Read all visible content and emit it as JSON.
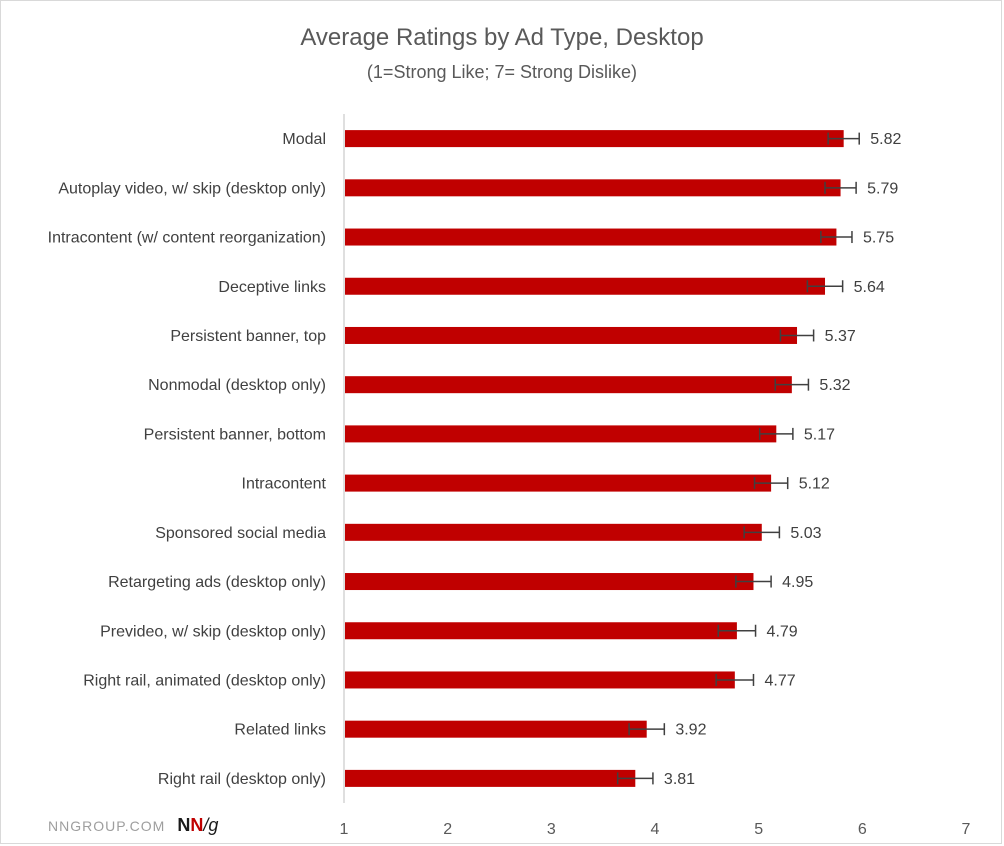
{
  "chart_data": {
    "type": "bar",
    "orientation": "horizontal",
    "title": "Average Ratings by Ad Type, Desktop",
    "subtitle": "(1=Strong Like; 7= Strong Dislike)",
    "categories": [
      "Modal",
      "Autoplay video, w/ skip (desktop only)",
      "Intracontent (w/ content reorganization)",
      "Deceptive links",
      "Persistent banner, top",
      "Nonmodal (desktop only)",
      "Persistent banner, bottom",
      "Intracontent",
      "Sponsored social media",
      "Retargeting ads (desktop only)",
      "Prevideo, w/ skip (desktop only)",
      "Right rail, animated (desktop only)",
      "Related links",
      "Right rail (desktop only)"
    ],
    "values": [
      5.82,
      5.79,
      5.75,
      5.64,
      5.37,
      5.32,
      5.17,
      5.12,
      5.03,
      4.95,
      4.79,
      4.77,
      3.92,
      3.81
    ],
    "value_labels": [
      "5.82",
      "5.79",
      "5.75",
      "5.64",
      "5.37",
      "5.32",
      "5.17",
      "5.12",
      "5.03",
      "4.95",
      "4.79",
      "4.77",
      "3.92",
      "3.81"
    ],
    "error_margin": [
      0.15,
      0.15,
      0.15,
      0.17,
      0.16,
      0.16,
      0.16,
      0.16,
      0.17,
      0.17,
      0.18,
      0.18,
      0.17,
      0.17
    ],
    "xlim": [
      1,
      7
    ],
    "x_ticks": [
      "1",
      "2",
      "3",
      "4",
      "5",
      "6",
      "7"
    ],
    "xlabel": "",
    "ylabel": "",
    "grid": false,
    "bar_color": "#c00000",
    "error_bar_color": "#404040"
  },
  "brand": {
    "text": "NNGROUP.COM",
    "logo_n1": "N",
    "logo_n2": "N",
    "logo_g": "/g"
  }
}
